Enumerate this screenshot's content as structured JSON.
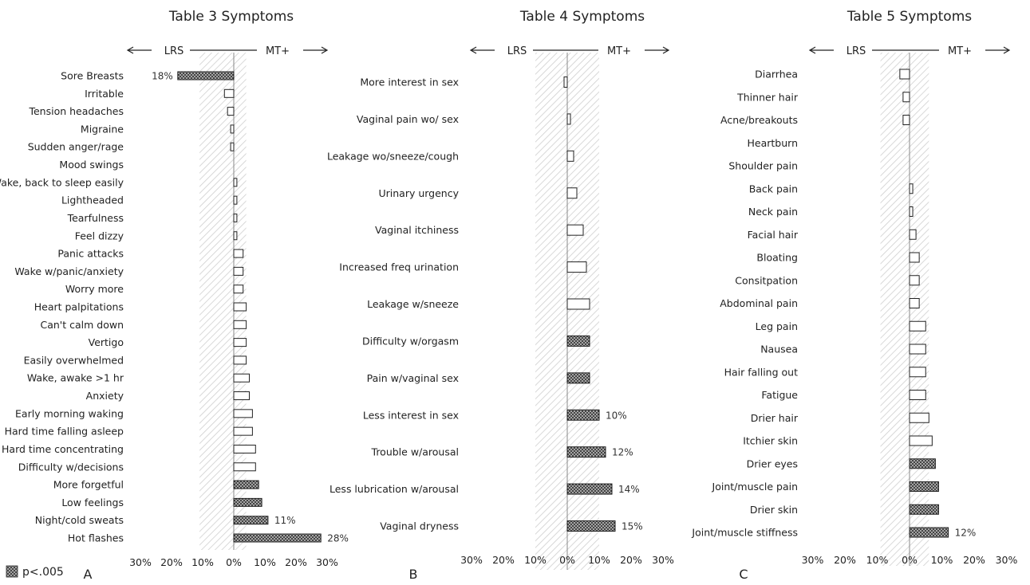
{
  "legend": {
    "label": "p<.005"
  },
  "colors": {
    "hatch_band": "#d6d6d6",
    "bar_border": "#222222",
    "sig_fill": "#2a2a2a",
    "axis": "#888888"
  },
  "chart_data": [
    {
      "type": "bar",
      "orientation": "horizontal",
      "title": "Table 3 Symptoms",
      "panel_letter": "A",
      "left_label": "LRS",
      "right_label": "MT+",
      "xlim": [
        -30,
        30
      ],
      "tick_labels": [
        "30%",
        "20%",
        "10%",
        "0%",
        "10%",
        "20%",
        "30%"
      ],
      "shaded_band": [
        -11,
        4
      ],
      "categories": [
        "Sore Breasts",
        "Irritable",
        "Tension headaches",
        "Migraine",
        "Sudden anger/rage",
        "Mood swings",
        "Wake, back to sleep easily",
        "Lightheaded",
        "Tearfulness",
        "Feel dizzy",
        "Panic attacks",
        "Wake w/panic/anxiety",
        "Worry more",
        "Heart palpitations",
        "Can't calm down",
        "Vertigo",
        "Easily overwhelmed",
        "Wake, awake >1 hr",
        "Anxiety",
        "Early morning waking",
        "Hard time falling asleep",
        "Hard time concentrating",
        "Difficulty w/decisions",
        "More forgetful",
        "Low feelings",
        "Night/cold sweats",
        "Hot flashes"
      ],
      "values": [
        -18,
        -3,
        -2,
        -1,
        -1,
        0,
        1,
        1,
        1,
        1,
        3,
        3,
        3,
        4,
        4,
        4,
        4,
        5,
        5,
        6,
        6,
        7,
        7,
        8,
        9,
        11,
        28
      ],
      "significant": [
        true,
        false,
        false,
        false,
        false,
        false,
        false,
        false,
        false,
        false,
        false,
        false,
        false,
        false,
        false,
        false,
        false,
        false,
        false,
        false,
        false,
        false,
        false,
        true,
        true,
        true,
        true
      ],
      "data_labels": [
        "18%",
        "",
        "",
        "",
        "",
        "",
        "",
        "",
        "",
        "",
        "",
        "",
        "",
        "",
        "",
        "",
        "",
        "",
        "",
        "",
        "",
        "",
        "",
        "",
        "",
        "11%",
        "28%"
      ]
    },
    {
      "type": "bar",
      "orientation": "horizontal",
      "title": "Table 4 Symptoms",
      "panel_letter": "B",
      "left_label": "LRS",
      "right_label": "MT+",
      "xlim": [
        -30,
        30
      ],
      "tick_labels": [
        "30%",
        "20%",
        "10%",
        "0%",
        "10%",
        "20%",
        "30%"
      ],
      "shaded_band": [
        -10,
        10
      ],
      "categories": [
        "More interest in sex",
        "Vaginal pain wo/ sex",
        "Leakage wo/sneeze/cough",
        "Urinary urgency",
        "Vaginal itchiness",
        "Increased freq urination",
        "Leakage w/sneeze",
        "Difficulty w/orgasm",
        "Pain w/vaginal sex",
        "Less interest in sex",
        "Trouble w/arousal",
        "Less lubrication w/arousal",
        "Vaginal dryness"
      ],
      "values": [
        -1,
        1,
        2,
        3,
        5,
        6,
        7,
        7,
        7,
        10,
        12,
        14,
        15
      ],
      "significant": [
        false,
        false,
        false,
        false,
        false,
        false,
        false,
        true,
        true,
        true,
        true,
        true,
        true
      ],
      "data_labels": [
        "",
        "",
        "",
        "",
        "",
        "",
        "",
        "",
        "",
        "10%",
        "12%",
        "14%",
        "15%"
      ]
    },
    {
      "type": "bar",
      "orientation": "horizontal",
      "title": "Table 5 Symptoms",
      "panel_letter": "C",
      "left_label": "LRS",
      "right_label": "MT+",
      "xlim": [
        -30,
        30
      ],
      "tick_labels": [
        "30%",
        "20%",
        "10%",
        "0%",
        "10%",
        "20%",
        "30%"
      ],
      "shaded_band": [
        -9,
        6
      ],
      "categories": [
        "Diarrhea",
        "Thinner hair",
        "Acne/breakouts",
        "Heartburn",
        "Shoulder pain",
        "Back pain",
        "Neck pain",
        "Facial hair",
        "Bloating",
        "Consitpation",
        "Abdominal pain",
        "Leg pain",
        "Nausea",
        "Hair falling out",
        "Fatigue",
        "Drier hair",
        "Itchier skin",
        "Drier eyes",
        "Joint/muscle pain",
        "Drier skin",
        "Joint/muscle stiffness"
      ],
      "values": [
        -3,
        -2,
        -2,
        0,
        0,
        1,
        1,
        2,
        3,
        3,
        3,
        5,
        5,
        5,
        5,
        6,
        7,
        8,
        9,
        9,
        12
      ],
      "significant": [
        false,
        false,
        false,
        false,
        false,
        false,
        false,
        false,
        false,
        false,
        false,
        false,
        false,
        false,
        false,
        false,
        false,
        true,
        true,
        true,
        true
      ],
      "data_labels": [
        "",
        "",
        "",
        "",
        "",
        "",
        "",
        "",
        "",
        "",
        "",
        "",
        "",
        "",
        "",
        "",
        "",
        "",
        "",
        "",
        "12%"
      ]
    }
  ]
}
